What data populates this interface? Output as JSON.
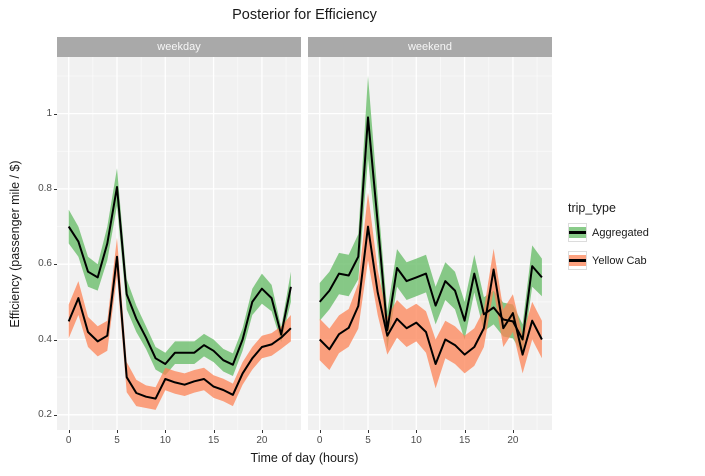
{
  "chart_data": {
    "type": "line",
    "title": "Posterior for Efficiency",
    "xlabel": "Time of day (hours)",
    "ylabel": "Efficiency (passenger mile / $)",
    "x": [
      0,
      1,
      2,
      3,
      4,
      5,
      6,
      7,
      8,
      9,
      10,
      11,
      12,
      13,
      14,
      15,
      16,
      17,
      18,
      19,
      20,
      21,
      22,
      23
    ],
    "x_ticks": [
      0,
      5,
      10,
      15,
      20
    ],
    "x_tick_labels": [
      "0",
      "5",
      "10",
      "15",
      "20"
    ],
    "y_ticks": [
      0.2,
      0.4,
      0.6,
      0.8,
      1.0
    ],
    "y_tick_labels": [
      "0.2",
      "0.4",
      "0.6",
      "0.8",
      "1"
    ],
    "ylim": [
      0.16,
      1.15
    ],
    "grid": "major-and-minor-white-on-gray",
    "legend_position": "right",
    "colors": {
      "panel_bg": "#f1f1f1",
      "strip_bg": "#a9a9a9",
      "gridline": "#ffffff",
      "line": "#000000",
      "aggregated_ribbon": "#61b961",
      "yellow_cab_ribbon": "#fc8355"
    },
    "legend": {
      "title": "trip_type",
      "entries": [
        {
          "label": "Aggregated",
          "ribbon_color": "#61b961"
        },
        {
          "label": "Yellow Cab",
          "ribbon_color": "#fc8355"
        }
      ]
    },
    "facets": [
      {
        "label": "weekday",
        "series": [
          {
            "name": "Aggregated",
            "ribbon_color": "#61b961",
            "values": [
              0.7,
              0.66,
              0.58,
              0.565,
              0.655,
              0.805,
              0.52,
              0.455,
              0.405,
              0.35,
              0.335,
              0.365,
              0.365,
              0.365,
              0.385,
              0.37,
              0.345,
              0.333,
              0.4,
              0.5,
              0.535,
              0.51,
              0.413,
              0.54
            ],
            "half_width": [
              0.045,
              0.04,
              0.04,
              0.035,
              0.045,
              0.05,
              0.04,
              0.035,
              0.03,
              0.03,
              0.03,
              0.03,
              0.03,
              0.03,
              0.03,
              0.03,
              0.03,
              0.03,
              0.03,
              0.035,
              0.04,
              0.035,
              0.02,
              0.04
            ]
          },
          {
            "name": "Yellow Cab",
            "ribbon_color": "#fc8355",
            "values": [
              0.448,
              0.51,
              0.42,
              0.395,
              0.41,
              0.62,
              0.3,
              0.258,
              0.248,
              0.243,
              0.295,
              0.286,
              0.28,
              0.289,
              0.295,
              0.275,
              0.266,
              0.253,
              0.31,
              0.35,
              0.38,
              0.387,
              0.405,
              0.43
            ],
            "half_width": [
              0.045,
              0.045,
              0.04,
              0.04,
              0.04,
              0.05,
              0.04,
              0.035,
              0.03,
              0.03,
              0.03,
              0.03,
              0.03,
              0.03,
              0.03,
              0.03,
              0.03,
              0.03,
              0.03,
              0.03,
              0.03,
              0.03,
              0.03,
              0.035
            ]
          }
        ]
      },
      {
        "label": "weekend",
        "series": [
          {
            "name": "Aggregated",
            "ribbon_color": "#61b961",
            "values": [
              0.5,
              0.53,
              0.575,
              0.57,
              0.62,
              0.99,
              0.71,
              0.425,
              0.59,
              0.555,
              0.565,
              0.575,
              0.49,
              0.555,
              0.53,
              0.45,
              0.575,
              0.467,
              0.485,
              0.453,
              0.448,
              0.4,
              0.595,
              0.565
            ],
            "half_width": [
              0.05,
              0.05,
              0.055,
              0.055,
              0.06,
              0.11,
              0.07,
              0.05,
              0.05,
              0.05,
              0.05,
              0.05,
              0.05,
              0.05,
              0.05,
              0.05,
              0.05,
              0.045,
              0.045,
              0.045,
              0.045,
              0.04,
              0.055,
              0.05
            ]
          },
          {
            "name": "Yellow Cab",
            "ribbon_color": "#fc8355",
            "values": [
              0.4,
              0.374,
              0.414,
              0.431,
              0.489,
              0.7,
              0.525,
              0.41,
              0.455,
              0.43,
              0.445,
              0.42,
              0.335,
              0.4,
              0.385,
              0.36,
              0.38,
              0.43,
              0.586,
              0.43,
              0.47,
              0.36,
              0.45,
              0.4
            ],
            "half_width": [
              0.055,
              0.055,
              0.05,
              0.05,
              0.06,
              0.09,
              0.06,
              0.05,
              0.05,
              0.05,
              0.05,
              0.055,
              0.065,
              0.05,
              0.05,
              0.05,
              0.05,
              0.05,
              0.055,
              0.05,
              0.05,
              0.05,
              0.05,
              0.05
            ]
          }
        ]
      }
    ]
  }
}
